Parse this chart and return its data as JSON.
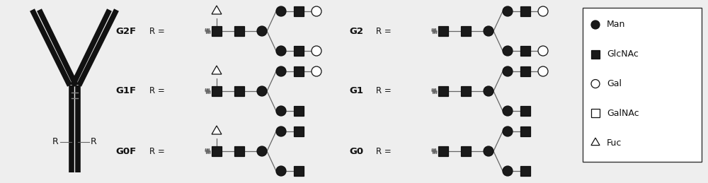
{
  "bg_color": "#eeeeee",
  "node_dark": "#1a1a1a",
  "node_open": "#ffffff",
  "node_edge": "#111111",
  "line_color": "#666666",
  "antibody_lw": 5.5,
  "legend_items": [
    {
      "label": "Man",
      "shape": "circle",
      "filled": true
    },
    {
      "label": "GlcNAc",
      "shape": "square",
      "filled": true
    },
    {
      "label": "Gal",
      "shape": "circle",
      "filled": false
    },
    {
      "label": "GalNAc",
      "shape": "square",
      "filled": false
    },
    {
      "label": "Fuc",
      "shape": "triangle",
      "filled": false
    }
  ],
  "glycans": [
    {
      "name": "G2F",
      "col": 0,
      "row": 0,
      "has_fuc": true,
      "gal_top": true,
      "gal_bot": true
    },
    {
      "name": "G1F",
      "col": 0,
      "row": 1,
      "has_fuc": true,
      "gal_top": true,
      "gal_bot": false
    },
    {
      "name": "G0F",
      "col": 0,
      "row": 2,
      "has_fuc": true,
      "gal_top": false,
      "gal_bot": false
    },
    {
      "name": "G2",
      "col": 1,
      "row": 0,
      "has_fuc": false,
      "gal_top": true,
      "gal_bot": true
    },
    {
      "name": "G1",
      "col": 1,
      "row": 1,
      "has_fuc": false,
      "gal_top": true,
      "gal_bot": false
    },
    {
      "name": "G0",
      "col": 1,
      "row": 2,
      "has_fuc": false,
      "gal_top": false,
      "gal_bot": false
    }
  ]
}
